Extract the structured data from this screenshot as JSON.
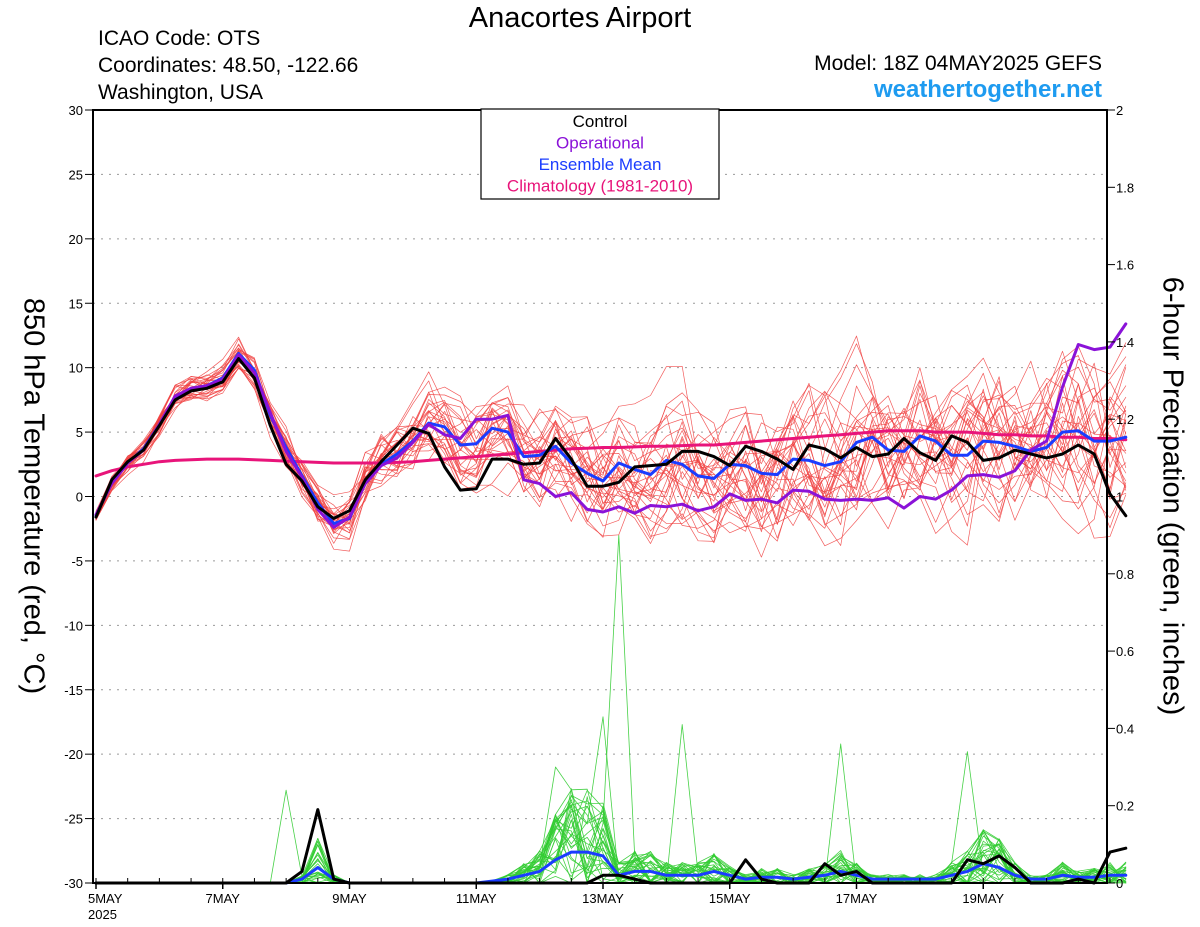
{
  "header": {
    "title": "Anacortes Airport",
    "icao": "ICAO Code: OTS",
    "coordinates": "Coordinates: 48.50, -122.66",
    "region": "Washington, USA",
    "model": "Model: 18Z 04MAY2025 GEFS",
    "site": "weathertogether.net"
  },
  "colors": {
    "members": "#f04040",
    "precip": "#33cc33",
    "control": "#000000",
    "operational": "#8a12d8",
    "mean": "#1a3cff",
    "climatology": "#e8147a",
    "site": "#1e9bf0"
  },
  "chart_data": {
    "type": "line",
    "ylabel": "850 hPa Temperature (red, °C)",
    "y2label": "6-hour Precipation (green, inches)",
    "ylim": [
      -30,
      30
    ],
    "y2lim": [
      0,
      2
    ],
    "yticks": [
      "30",
      "25",
      "20",
      "15",
      "10",
      "5",
      "0",
      "-5",
      "-10",
      "-15",
      "-20",
      "-25",
      "-30"
    ],
    "y2ticks": [
      "2",
      "1.8",
      "1.6",
      "1.4",
      "1.2",
      "1",
      "0.8",
      "0.6",
      "0.4",
      "0.2",
      "0"
    ],
    "xticks": [
      {
        "label": "5MAY",
        "sublabel": "2025",
        "step": 0
      },
      {
        "label": "7MAY",
        "step": 8
      },
      {
        "label": "9MAY",
        "step": 16
      },
      {
        "label": "11MAY",
        "step": 24
      },
      {
        "label": "13MAY",
        "step": 32
      },
      {
        "label": "15MAY",
        "step": 40
      },
      {
        "label": "17MAY",
        "step": 48
      },
      {
        "label": "19MAY",
        "step": 56
      }
    ],
    "x_steps": 64,
    "x_step_hours": 6,
    "x_start": "2025-05-04 18Z",
    "grid": true,
    "legend": {
      "position": "top-center",
      "entries": [
        {
          "name": "Control",
          "color": "#000000"
        },
        {
          "name": "Operational",
          "color": "#8a12d8"
        },
        {
          "name": "Ensemble Mean",
          "color": "#1a3cff"
        },
        {
          "name": "Climatology (1981-2010)",
          "color": "#e8147a"
        }
      ]
    },
    "temp_series": {
      "control": [
        -1.6,
        1.3,
        2.7,
        3.6,
        5.5,
        7.5,
        8.2,
        8.4,
        8.9,
        10.7,
        9.2,
        5.5,
        2.5,
        1.2,
        -0.8,
        -1.7,
        -1.1,
        1.3,
        2.7,
        4.0,
        5.3,
        4.9,
        2.3,
        0.5,
        0.6,
        2.9,
        2.9,
        2.5,
        2.6,
        4.5,
        2.9,
        0.8,
        0.8,
        1.1,
        2.3,
        2.4,
        2.5,
        3.5,
        3.5,
        3.1,
        2.4,
        3.9,
        3.5,
        2.9,
        2.1,
        4.0,
        3.7,
        3.0,
        3.8,
        3.1,
        3.3,
        4.5,
        3.4,
        2.8,
        4.7,
        4.2,
        2.8,
        3.0,
        3.6,
        3.3,
        3.0,
        3.3,
        4.0,
        3.3,
        0.2,
        -1.5
      ],
      "operational": [
        -1.4,
        1.0,
        2.6,
        3.6,
        5.6,
        7.8,
        8.4,
        8.6,
        9.1,
        11.0,
        9.6,
        6.5,
        3.5,
        1.5,
        -1.0,
        -2.4,
        -1.6,
        1.0,
        2.4,
        3.0,
        4.2,
        5.6,
        4.8,
        4.5,
        6.0,
        6.0,
        6.3,
        1.3,
        1.0,
        0.0,
        0.3,
        -1.0,
        -1.2,
        -0.8,
        -1.3,
        -0.7,
        -0.8,
        -0.6,
        -1.1,
        -0.8,
        0.2,
        -0.3,
        -0.2,
        -0.5,
        0.5,
        0.4,
        -0.2,
        -0.3,
        -0.2,
        -0.3,
        -0.1,
        -0.9,
        0.0,
        -0.2,
        0.5,
        1.6,
        1.7,
        1.5,
        2.0,
        3.6,
        4.3,
        8.5,
        11.8,
        11.4,
        11.6,
        13.4
      ],
      "mean": [
        -1.5,
        1.1,
        2.6,
        3.7,
        5.6,
        7.7,
        8.4,
        8.6,
        9.2,
        11.1,
        9.8,
        6.3,
        3.8,
        1.6,
        -0.5,
        -2.1,
        -1.7,
        1.1,
        2.5,
        3.3,
        4.3,
        5.7,
        5.4,
        4.0,
        4.1,
        5.3,
        5.0,
        3.1,
        3.2,
        3.9,
        2.6,
        1.8,
        1.2,
        2.6,
        2.1,
        1.7,
        2.8,
        2.5,
        1.6,
        1.4,
        2.5,
        2.4,
        1.8,
        1.7,
        2.9,
        2.8,
        2.4,
        2.7,
        4.2,
        4.6,
        3.6,
        3.5,
        4.7,
        4.3,
        3.2,
        3.2,
        4.3,
        4.2,
        3.9,
        3.5,
        3.8,
        5.0,
        5.1,
        4.3,
        4.3,
        4.6
      ],
      "climatology": [
        1.6,
        2.0,
        2.3,
        2.5,
        2.7,
        2.8,
        2.85,
        2.9,
        2.9,
        2.9,
        2.85,
        2.8,
        2.75,
        2.7,
        2.65,
        2.6,
        2.6,
        2.6,
        2.6,
        2.65,
        2.7,
        2.8,
        2.9,
        3.0,
        3.1,
        3.2,
        3.3,
        3.4,
        3.5,
        3.6,
        3.7,
        3.75,
        3.8,
        3.8,
        3.85,
        3.9,
        3.9,
        3.95,
        4.0,
        4.0,
        4.1,
        4.2,
        4.3,
        4.4,
        4.5,
        4.6,
        4.7,
        4.8,
        4.9,
        5.0,
        5.1,
        5.1,
        5.1,
        5.0,
        5.0,
        5.0,
        4.9,
        4.8,
        4.8,
        4.7,
        4.7,
        4.6,
        4.6,
        4.5,
        4.5,
        4.4
      ]
    },
    "member_count": 30,
    "member_spread": [
      0.4,
      0.5,
      0.6,
      0.6,
      0.7,
      0.8,
      0.8,
      0.9,
      0.9,
      1.0,
      1.0,
      1.1,
      1.2,
      1.3,
      1.4,
      1.5,
      1.6,
      1.7,
      1.9,
      2.0,
      2.1,
      2.2,
      2.3,
      2.5,
      2.6,
      2.7,
      2.8,
      3.0,
      3.1,
      3.2,
      3.3,
      3.4,
      3.5,
      3.6,
      3.7,
      3.8,
      3.9,
      4.0,
      4.0,
      4.1,
      4.2,
      4.2,
      4.3,
      4.4,
      4.4,
      4.5,
      4.6,
      4.6,
      4.7,
      4.7,
      4.8,
      4.8,
      4.9,
      4.9,
      5.0,
      5.0,
      5.0,
      5.1,
      5.1,
      5.1,
      5.2,
      5.2,
      5.2,
      5.3,
      5.3,
      5.3
    ],
    "precip_series": {
      "control": [
        0,
        0,
        0,
        0,
        0,
        0,
        0,
        0,
        0,
        0,
        0,
        0,
        0,
        0.03,
        0.19,
        0.01,
        0,
        0,
        0,
        0,
        0,
        0,
        0,
        0,
        0,
        0,
        0,
        0,
        0,
        0,
        0,
        0,
        0.02,
        0.02,
        0.01,
        0,
        0,
        0,
        0,
        0,
        0,
        0.06,
        0.01,
        0,
        0,
        0,
        0.05,
        0.02,
        0.03,
        0,
        0,
        0,
        0,
        0,
        0,
        0.06,
        0.05,
        0.07,
        0.04,
        0,
        0,
        0,
        0.01,
        0,
        0.08,
        0.09
      ],
      "mean": [
        0,
        0,
        0,
        0,
        0,
        0,
        0,
        0,
        0,
        0,
        0,
        0,
        0,
        0.01,
        0.04,
        0.01,
        0,
        0,
        0,
        0,
        0,
        0,
        0,
        0,
        0,
        0.005,
        0.01,
        0.02,
        0.03,
        0.06,
        0.08,
        0.08,
        0.07,
        0.02,
        0.03,
        0.03,
        0.02,
        0.02,
        0.02,
        0.03,
        0.02,
        0.01,
        0.015,
        0.015,
        0.01,
        0.015,
        0.02,
        0.03,
        0.02,
        0.01,
        0.01,
        0.01,
        0.01,
        0.01,
        0.02,
        0.03,
        0.05,
        0.04,
        0.02,
        0.01,
        0.01,
        0.02,
        0.015,
        0.015,
        0.02,
        0.02
      ],
      "peak": 0.9,
      "peak_step": 33
    }
  }
}
